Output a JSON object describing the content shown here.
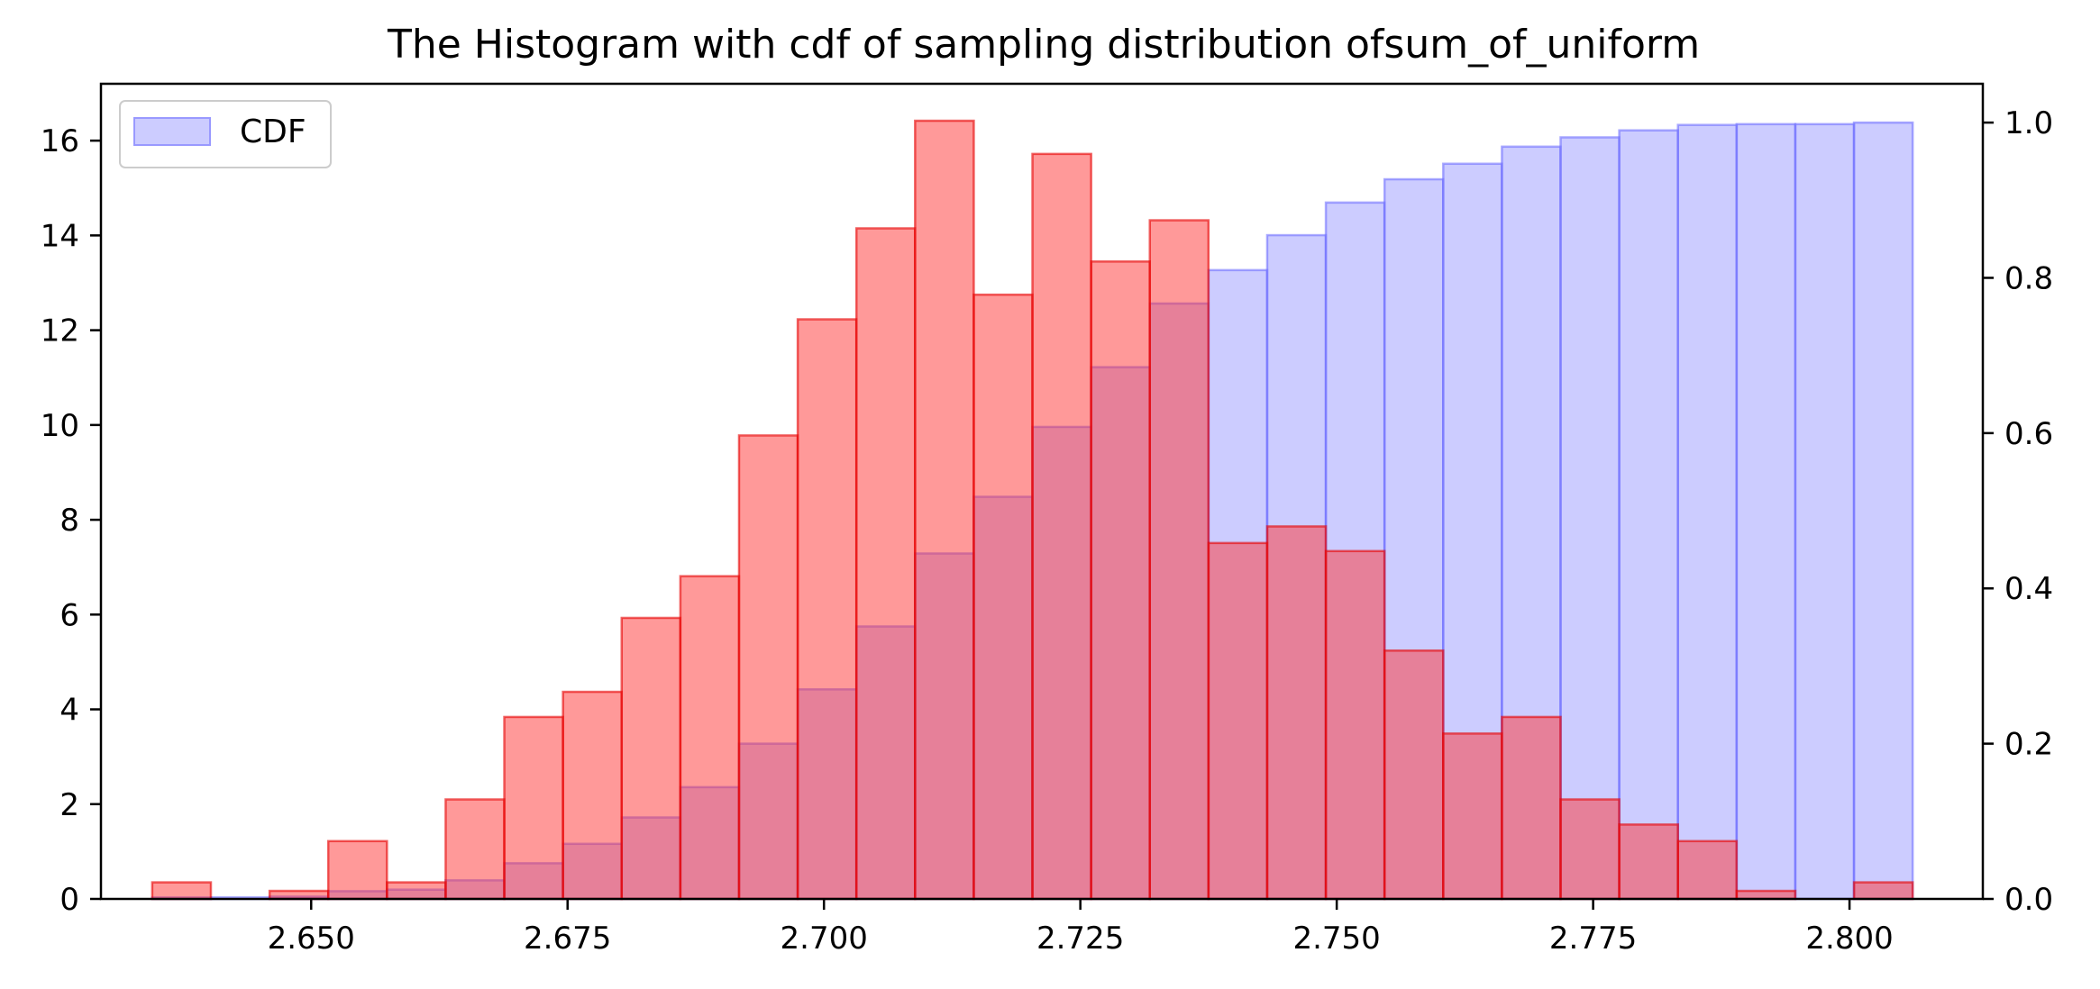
{
  "chart_data": {
    "type": "bar",
    "title": "The Histogram with cdf of sampling distribution ofsum_of_uniform",
    "xlabel": "",
    "ylabel": "",
    "xlim": [
      2.6295,
      2.813
    ],
    "ylim_left": [
      0,
      17.2
    ],
    "ylim_right": [
      0,
      1.05
    ],
    "x_ticks": [
      "2.650",
      "2.675",
      "2.700",
      "2.725",
      "2.750",
      "2.775",
      "2.800"
    ],
    "y_left_ticks": [
      "0",
      "2",
      "4",
      "6",
      "8",
      "10",
      "12",
      "14",
      "16"
    ],
    "y_right_ticks": [
      "0.0",
      "0.2",
      "0.4",
      "0.6",
      "0.8",
      "1.0"
    ],
    "bin_start": 2.6345,
    "bin_width": 0.005722,
    "histogram": {
      "color": "#ff4d4d",
      "values": [
        0.35,
        0.0,
        0.17,
        1.22,
        0.35,
        2.1,
        3.84,
        4.37,
        5.93,
        6.81,
        9.78,
        12.23,
        14.15,
        16.42,
        12.75,
        15.72,
        13.45,
        14.32,
        7.51,
        7.86,
        7.34,
        5.24,
        3.49,
        3.84,
        2.1,
        1.57,
        1.22,
        0.17,
        0.0,
        0.35
      ]
    },
    "cdf": {
      "name": "CDF",
      "color": "#9999ff",
      "values": [
        0.002,
        0.002,
        0.003,
        0.01,
        0.012,
        0.024,
        0.046,
        0.071,
        0.105,
        0.144,
        0.2,
        0.27,
        0.351,
        0.445,
        0.518,
        0.608,
        0.685,
        0.767,
        0.81,
        0.855,
        0.897,
        0.927,
        0.947,
        0.969,
        0.981,
        0.99,
        0.997,
        0.998,
        0.998,
        1.0
      ]
    },
    "legend": {
      "position": "top-left",
      "label": "CDF"
    },
    "grid": false
  }
}
